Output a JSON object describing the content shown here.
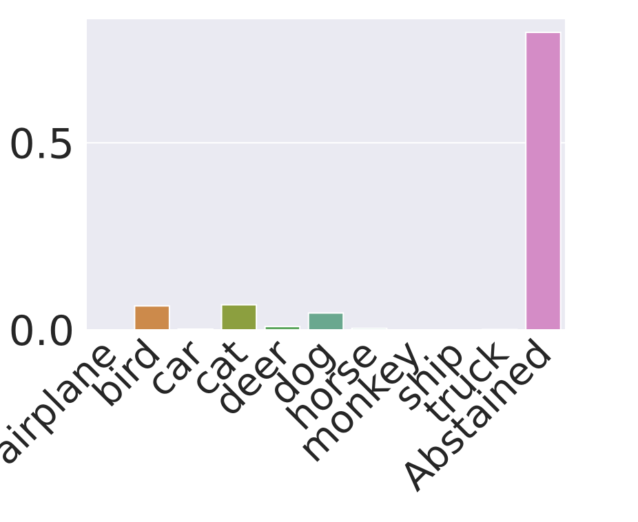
{
  "chart_data": {
    "type": "bar",
    "title": "",
    "xlabel": "",
    "ylabel": "",
    "categories": [
      "airplane",
      "bird",
      "car",
      "cat",
      "deer",
      "dog",
      "horse",
      "monkey",
      "ship",
      "truck",
      "Abstained"
    ],
    "values": [
      0.0,
      0.064,
      0.002,
      0.067,
      0.009,
      0.045,
      0.004,
      0.0,
      0.0,
      0.001,
      0.795
    ],
    "colors": [
      "#c44e52",
      "#cc8a4b",
      "#b5a74d",
      "#8c9f3f",
      "#5aa55b",
      "#6aa88f",
      "#78b0ac",
      "#7a9fc8",
      "#9a8fd6",
      "#c48fd9",
      "#d48cc6"
    ],
    "ylim": [
      0,
      0.83
    ],
    "yticks": [
      0.0,
      0.5
    ],
    "ytick_labels": [
      "0.0",
      "0.5"
    ],
    "grid": true,
    "style": {
      "background": "#eaeaf2",
      "grid_color": "#ffffff",
      "text_color": "#262626"
    }
  }
}
